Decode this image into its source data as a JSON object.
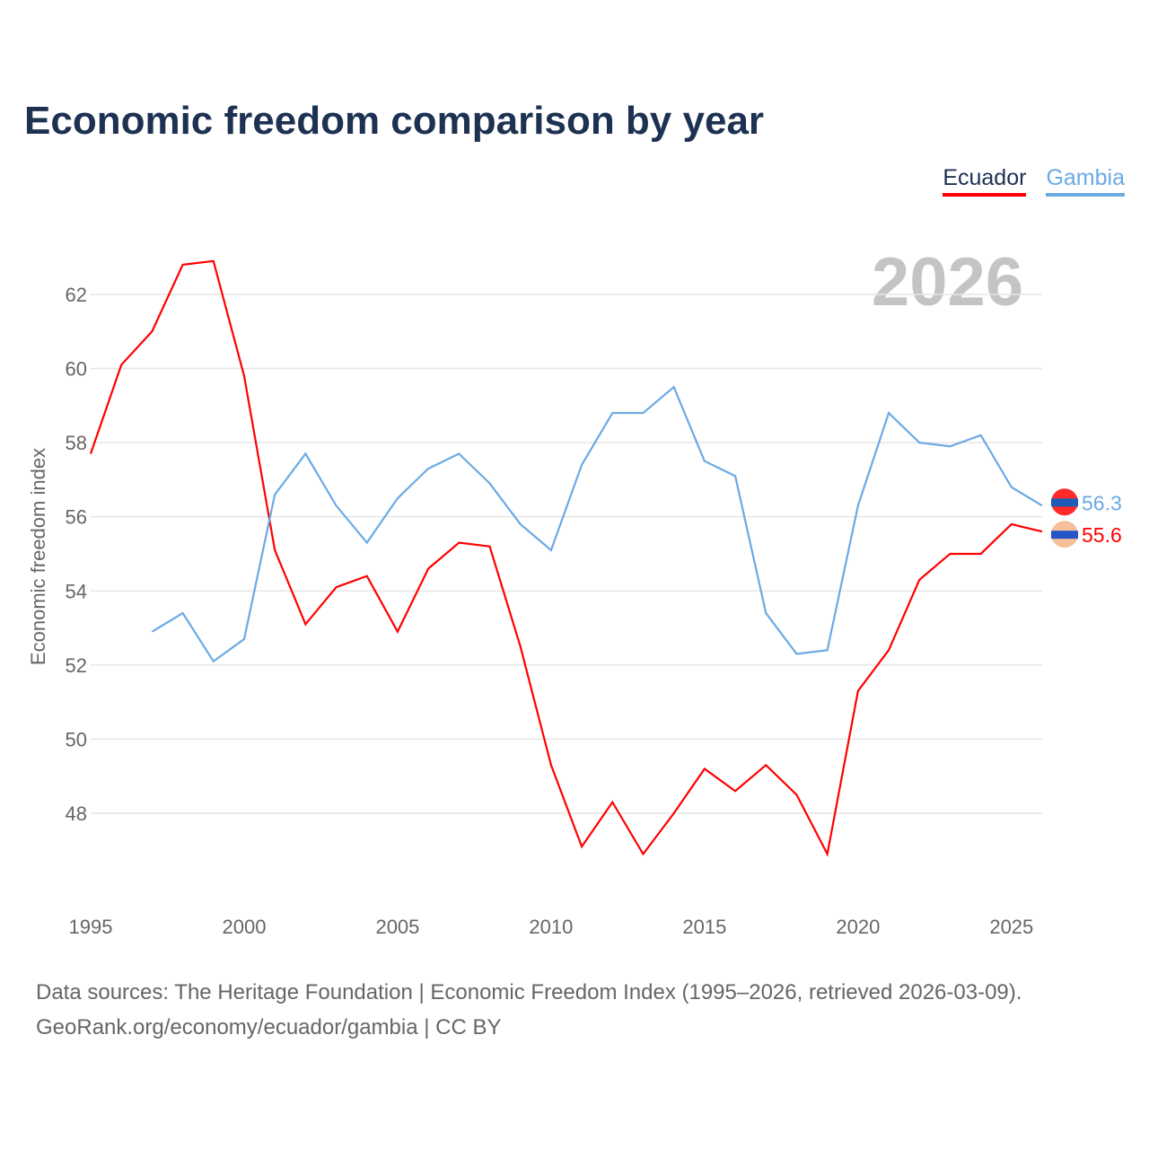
{
  "title": "Economic freedom comparison by year",
  "footer": {
    "line1": "Data sources: The Heritage Foundation | Economic Freedom Index (1995–2026, retrieved 2026-03-09).",
    "line2": "GeoRank.org/economy/ecuador/gambia | CC BY"
  },
  "chart_data": {
    "type": "line",
    "title": "Economic freedom comparison by year",
    "ylabel": "Economic freedom index",
    "xlabel": "",
    "year_label": "2026",
    "xlim": [
      1995,
      2026
    ],
    "xticks": [
      1995,
      2000,
      2005,
      2010,
      2015,
      2020,
      2025
    ],
    "yticks": [
      48,
      50,
      52,
      54,
      56,
      58,
      60,
      62
    ],
    "grid": true,
    "legend_position": "top-right",
    "series": [
      {
        "name": "Ecuador",
        "color": "#ff0000",
        "end_label": "55.6",
        "x": [
          1995,
          1996,
          1997,
          1998,
          1999,
          2000,
          2001,
          2002,
          2003,
          2004,
          2005,
          2006,
          2007,
          2008,
          2009,
          2010,
          2011,
          2012,
          2013,
          2014,
          2015,
          2016,
          2017,
          2018,
          2019,
          2020,
          2021,
          2022,
          2023,
          2024,
          2025,
          2026
        ],
        "values": [
          57.7,
          60.1,
          61.0,
          62.8,
          62.9,
          59.8,
          55.1,
          53.1,
          54.1,
          54.4,
          52.9,
          54.6,
          55.3,
          55.2,
          52.5,
          49.3,
          47.1,
          48.3,
          46.9,
          48.0,
          49.2,
          48.6,
          49.3,
          48.5,
          46.9,
          51.3,
          52.4,
          54.3,
          55.0,
          55.0,
          55.8,
          55.6
        ]
      },
      {
        "name": "Gambia",
        "color": "#6aaae4",
        "end_label": "56.3",
        "x": [
          1997,
          1998,
          1999,
          2000,
          2001,
          2002,
          2003,
          2004,
          2005,
          2006,
          2007,
          2008,
          2009,
          2010,
          2011,
          2012,
          2013,
          2014,
          2015,
          2016,
          2017,
          2018,
          2019,
          2020,
          2021,
          2022,
          2023,
          2024,
          2025,
          2026
        ],
        "values": [
          52.9,
          53.4,
          52.1,
          52.7,
          56.6,
          57.7,
          56.3,
          55.3,
          56.5,
          57.3,
          57.7,
          56.9,
          55.8,
          55.1,
          57.4,
          58.8,
          58.8,
          59.5,
          57.5,
          57.1,
          53.4,
          52.3,
          52.4,
          56.3,
          58.8,
          58.0,
          57.9,
          58.2,
          56.8,
          56.3
        ]
      }
    ]
  }
}
